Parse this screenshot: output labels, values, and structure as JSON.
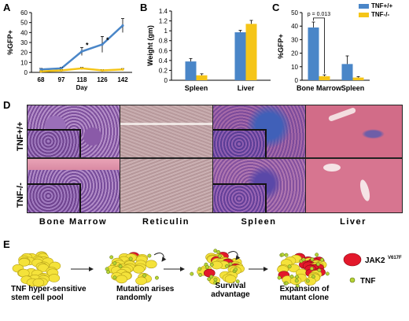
{
  "panels": {
    "a": "A",
    "b": "B",
    "c": "C",
    "d": "D",
    "e": "E"
  },
  "colors": {
    "tnf_wt": "#4a86c8",
    "tnf_ko": "#f5c518"
  },
  "legend": {
    "wt": "TNF+/+",
    "ko": "TNF-/-"
  },
  "chart_data": [
    {
      "type": "line",
      "panel": "A",
      "ylabel": "%GFP+",
      "xlabel": "Day",
      "categories": [
        "68",
        "97",
        "118",
        "126",
        "142"
      ],
      "ylim": [
        0,
        60
      ],
      "yticks": [
        "0",
        "10",
        "20",
        "30",
        "40",
        "50",
        "60"
      ],
      "series": [
        {
          "key": "wt",
          "values": [
            3,
            4,
            21,
            28,
            47
          ],
          "errors": [
            1,
            1,
            4,
            8,
            7
          ]
        },
        {
          "key": "ko",
          "values": [
            1,
            2,
            4,
            2,
            3
          ],
          "errors": [
            0.5,
            0.5,
            1,
            0.5,
            0.8
          ]
        }
      ],
      "annotations": [
        "*",
        "*"
      ]
    },
    {
      "type": "bar",
      "panel": "B",
      "ylabel": "Weight (gm)",
      "categories": [
        "Spleen",
        "Liver"
      ],
      "ylim": [
        0,
        1.4
      ],
      "yticks": [
        "0",
        "0.2",
        "0.4",
        "0.6",
        "0.8",
        "1",
        "1.2",
        "1.4"
      ],
      "series": [
        {
          "key": "wt",
          "values": [
            0.38,
            0.97
          ],
          "errors": [
            0.06,
            0.04
          ]
        },
        {
          "key": "ko",
          "values": [
            0.1,
            1.14
          ],
          "errors": [
            0.03,
            0.07
          ]
        }
      ]
    },
    {
      "type": "bar",
      "panel": "C",
      "ylabel": "%GFP+",
      "categories": [
        "Bone Marrow",
        "Spleen"
      ],
      "ylim": [
        0,
        50
      ],
      "yticks": [
        "0",
        "10",
        "20",
        "30",
        "40",
        "50"
      ],
      "series": [
        {
          "key": "wt",
          "values": [
            39,
            12
          ],
          "errors": [
            4,
            6
          ]
        },
        {
          "key": "ko",
          "values": [
            3,
            2
          ],
          "errors": [
            1,
            0.7
          ]
        }
      ],
      "annotations": [
        "p = 0.013"
      ]
    }
  ],
  "histology": {
    "rows": [
      "TNF+/+",
      "TNF-/-"
    ],
    "columns": [
      "Bone Marrow",
      "Reticulin",
      "Spleen",
      "Liver"
    ]
  },
  "schematic": {
    "stages": [
      "TNF hyper-sensitive stem cell pool",
      "Mutation arises randomly",
      "Survival advantage",
      "Expansion of mutant clone"
    ],
    "legend_jak2": "JAK2",
    "legend_jak2_sup": "V617F",
    "legend_tnf": "TNF"
  }
}
